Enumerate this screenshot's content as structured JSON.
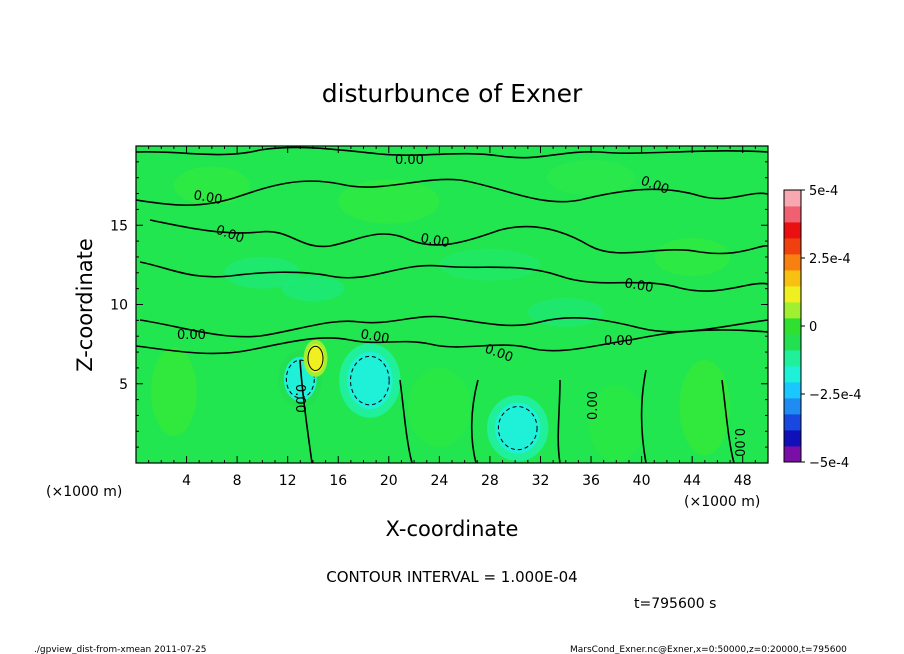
{
  "chart_data": {
    "type": "heatmap",
    "title": "disturbunce of Exner",
    "xlabel": "X-coordinate",
    "ylabel": "Z-coordinate",
    "x_units": "(×1000 m)",
    "y_units": "(×1000 m)",
    "xlim": [
      0,
      50
    ],
    "ylim": [
      0,
      20
    ],
    "x_ticks": [
      4,
      8,
      12,
      16,
      20,
      24,
      28,
      32,
      36,
      40,
      44,
      48
    ],
    "y_ticks": [
      5,
      10,
      15
    ],
    "contour_label": "0.00",
    "contour_interval_text": "CONTOUR INTERVAL = 1.000E-04",
    "time_text": "t=795600 s",
    "colorbar": {
      "range": [
        -0.0005,
        0.0005
      ],
      "tick_labels": [
        "5e-4",
        "2.5e-4",
        "0",
        "−2.5e-4",
        "−5e-4"
      ],
      "tick_values": [
        0.0005,
        0.00025,
        0,
        -0.00025,
        -0.0005
      ],
      "colors": [
        "#7a0fa8",
        "#1010b8",
        "#1848e0",
        "#1f8cf2",
        "#19c8ff",
        "#1ff0d8",
        "#20f09a",
        "#22e050",
        "#30e030",
        "#a0f030",
        "#f0f020",
        "#f8c010",
        "#f88010",
        "#f04010",
        "#e81010",
        "#f06070",
        "#f8a8b0"
      ]
    },
    "features": [
      {
        "kind": "negative",
        "x": 13.0,
        "z": 5.3,
        "rx": 1.3,
        "rz": 1.4,
        "value": -0.00015
      },
      {
        "kind": "negative",
        "x": 18.5,
        "z": 5.2,
        "rx": 1.8,
        "rz": 1.8,
        "value": -0.0002
      },
      {
        "kind": "negative",
        "x": 30.2,
        "z": 2.2,
        "rx": 1.8,
        "rz": 1.6,
        "value": -0.0002
      },
      {
        "kind": "positive",
        "x": 14.2,
        "z": 6.6,
        "rx": 0.7,
        "rz": 0.9,
        "value": 0.00012
      }
    ]
  },
  "footer": {
    "left": "./gpview_dist-from-xmean   2011-07-25",
    "right": "MarsCond_Exner.nc@Exner,x=0:50000,z=0:20000,t=795600"
  }
}
